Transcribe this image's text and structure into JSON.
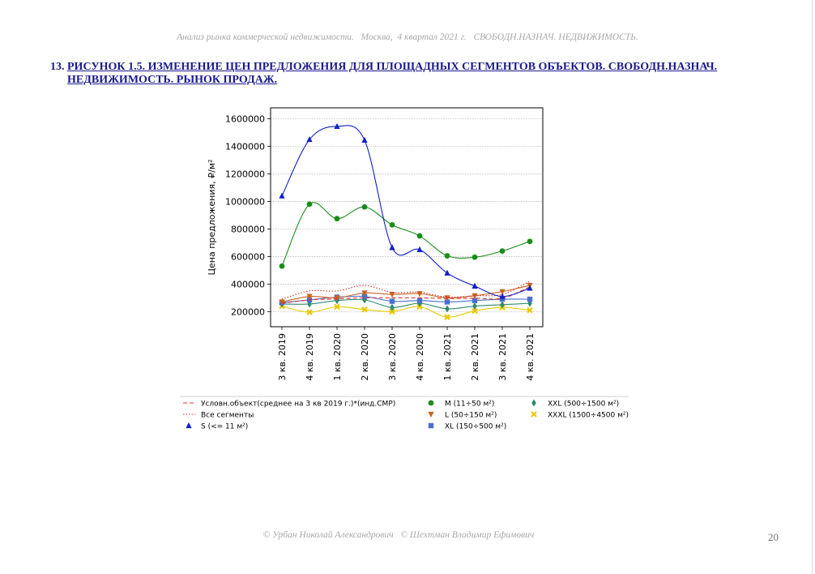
{
  "header": {
    "text": "Анализ рынка коммерческой недвижимости.   Москва,  4 квартал 2021 г.   СВОБОДН.НАЗНАЧ. НЕДВИЖИМОСТЬ."
  },
  "figure": {
    "number": "13.",
    "title": "РИСУНОК 1.5. ИЗМЕНЕНИЕ ЦЕН ПРЕДЛОЖЕНИЯ ДЛЯ ПЛОЩАДНЫХ СЕГМЕНТОВ ОБЪЕКТОВ. СВОБОДН.НАЗНАЧ. НЕДВИЖИМОСТЬ. РЫНОК ПРОДАЖ."
  },
  "chart_data": {
    "type": "line",
    "ylabel": "Цена предложения, ₽/м²",
    "ylim": [
      90000,
      1680000
    ],
    "yticks": [
      200000,
      400000,
      600000,
      800000,
      1000000,
      1200000,
      1400000,
      1600000
    ],
    "grid": "horizontal-dotted",
    "categories": [
      "3 кв. 2019",
      "4 кв. 2019",
      "1 кв. 2020",
      "2 кв. 2020",
      "3 кв. 2020",
      "4 кв. 2020",
      "1 кв. 2021",
      "2 кв. 2021",
      "3 кв. 2021",
      "4 кв. 2021"
    ],
    "legend_position": "bottom",
    "series": [
      {
        "name": "Условн.объект(среднее на 3 кв 2019 г.)*(инд.СМР)",
        "color": "#e03030",
        "style": "dashed",
        "marker": "none",
        "values": [
          260000,
          285000,
          292000,
          300000,
          300000,
          300000,
          295000,
          297000,
          297000,
          380000
        ]
      },
      {
        "name": "Все сегменты",
        "color": "#e03030",
        "style": "dotted",
        "marker": "none",
        "values": [
          290000,
          350000,
          350000,
          390000,
          340000,
          340000,
          305000,
          315000,
          325000,
          420000
        ]
      },
      {
        "name": "S (<= 11 м²)",
        "color": "#1020c8",
        "style": "solid",
        "marker": "triangle",
        "values": [
          1040000,
          1450000,
          1545000,
          1445000,
          665000,
          650000,
          480000,
          385000,
          310000,
          370000
        ]
      },
      {
        "name": "M (11÷50 м²)",
        "color": "#1a8c1a",
        "style": "solid",
        "marker": "circle",
        "values": [
          530000,
          980000,
          875000,
          960000,
          830000,
          750000,
          605000,
          595000,
          640000,
          710000
        ]
      },
      {
        "name": "L (50÷150 м²)",
        "color": "#c86420",
        "style": "solid",
        "marker": "triangle-down",
        "values": [
          270000,
          310000,
          300000,
          335000,
          325000,
          330000,
          300000,
          315000,
          345000,
          390000
        ]
      },
      {
        "name": "XL (150÷500 м²)",
        "color": "#4a6fd0",
        "style": "solid",
        "marker": "square",
        "values": [
          265000,
          285000,
          305000,
          310000,
          275000,
          280000,
          270000,
          280000,
          290000,
          290000
        ]
      },
      {
        "name": "XXL (500÷1500 м²)",
        "color": "#2e8b6e",
        "style": "solid",
        "marker": "diamond",
        "values": [
          255000,
          255000,
          280000,
          285000,
          230000,
          260000,
          220000,
          240000,
          250000,
          260000
        ]
      },
      {
        "name": "XXXL (1500÷4500 м²)",
        "color": "#e8c800",
        "style": "solid",
        "marker": "x",
        "values": [
          240000,
          195000,
          235000,
          215000,
          200000,
          235000,
          160000,
          205000,
          230000,
          210000
        ]
      }
    ]
  },
  "footer": {
    "text": "© Урбан Николай Александрович   © Шехтман Владимир Ефимович",
    "page": "20"
  }
}
